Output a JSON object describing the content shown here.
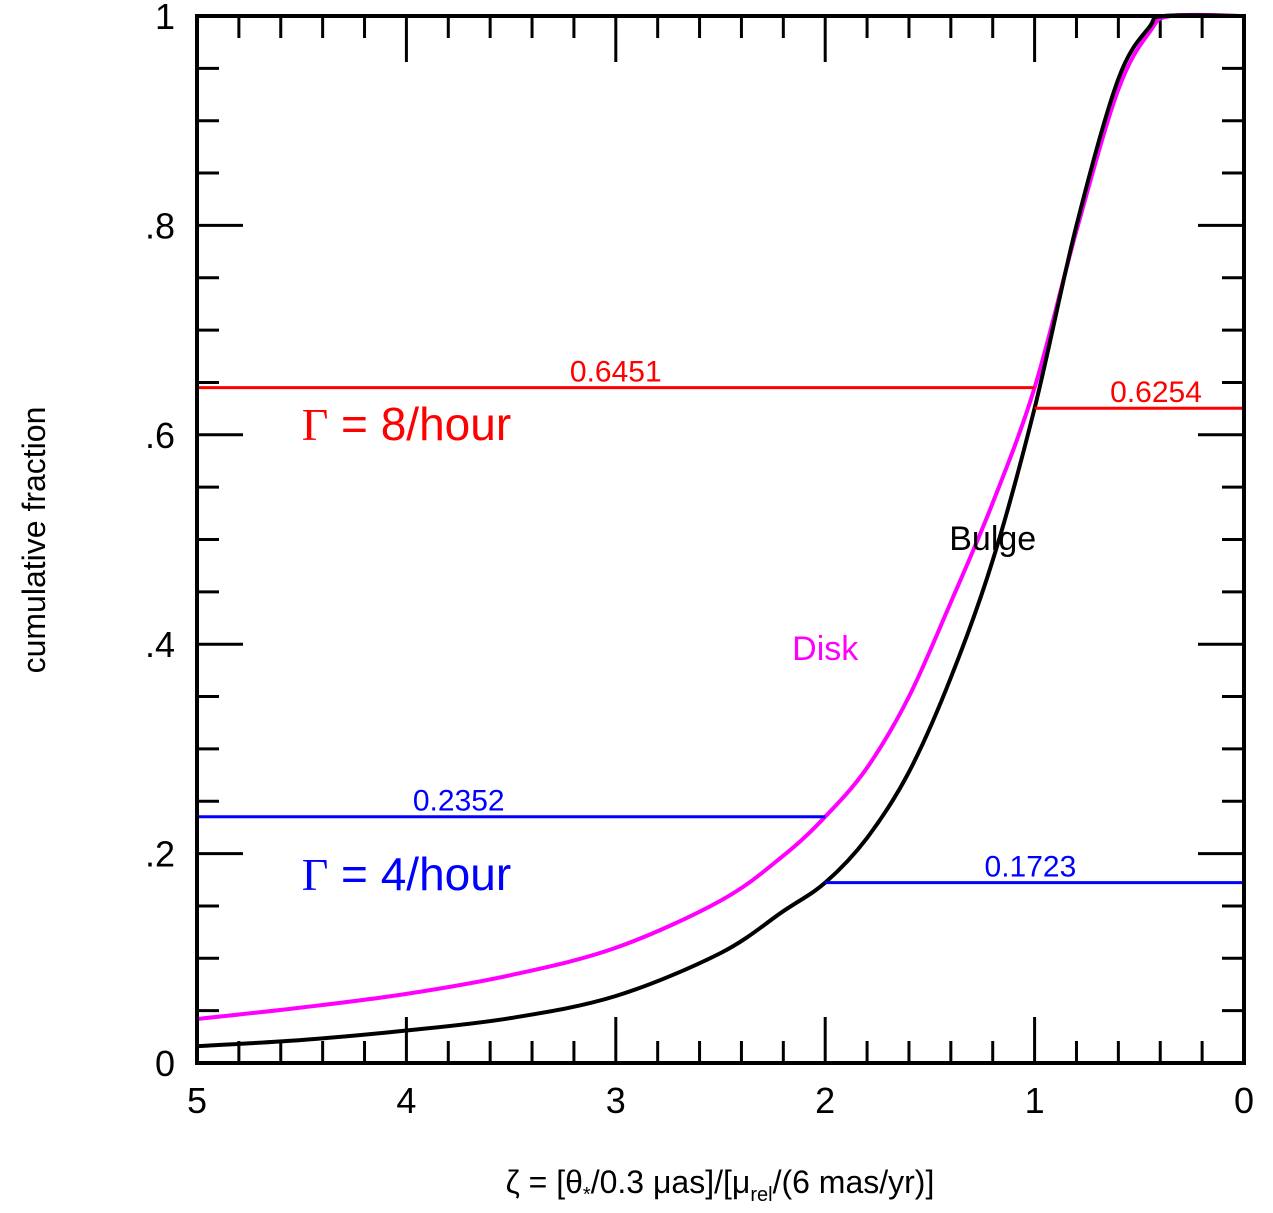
{
  "chart_data": {
    "type": "line",
    "xlabel": {
      "prefix": "ζ = [θ",
      "sub1": "*",
      "mid": "/0.3 μas]/[μ",
      "sub2": "rel",
      "suffix": "/(6 mas/yr)]"
    },
    "ylabel": "cumulative fraction",
    "xlim": [
      5,
      0
    ],
    "ylim": [
      0,
      1
    ],
    "x_ticks": [
      5,
      4,
      3,
      2,
      1,
      0
    ],
    "x_tick_labels": [
      "5",
      "4",
      "3",
      "2",
      "1",
      "0"
    ],
    "y_ticks": [
      0,
      0.2,
      0.4,
      0.6,
      0.8,
      1
    ],
    "y_tick_labels": [
      "0",
      ".2",
      ".4",
      ".6",
      ".8",
      "1"
    ],
    "series": [
      {
        "name": "Disk",
        "color": "#ff00ff",
        "x": [
          5.0,
          4.5,
          4.0,
          3.5,
          3.0,
          2.5,
          2.2,
          2.0,
          1.8,
          1.6,
          1.4,
          1.2,
          1.0,
          0.8,
          0.6,
          0.45,
          0.35,
          0.0
        ],
        "y": [
          0.042,
          0.053,
          0.066,
          0.084,
          0.11,
          0.155,
          0.198,
          0.2352,
          0.282,
          0.35,
          0.44,
          0.535,
          0.6451,
          0.795,
          0.93,
          0.985,
          1.0,
          1.0
        ]
      },
      {
        "name": "Bulge",
        "color": "#000000",
        "x": [
          5.0,
          4.5,
          4.0,
          3.5,
          3.0,
          2.5,
          2.2,
          2.0,
          1.8,
          1.6,
          1.4,
          1.2,
          1.0,
          0.8,
          0.6,
          0.45,
          0.38,
          0.0
        ],
        "y": [
          0.016,
          0.022,
          0.031,
          0.043,
          0.064,
          0.105,
          0.145,
          0.1723,
          0.215,
          0.278,
          0.368,
          0.48,
          0.6254,
          0.8,
          0.94,
          0.99,
          1.0,
          1.0
        ]
      }
    ],
    "hlines": [
      {
        "y": 0.6451,
        "x_from": 5,
        "x_to": 1.0,
        "color": "#ff0000",
        "label": "0.6451",
        "label_x": 3.0
      },
      {
        "y": 0.6254,
        "x_from": 1.0,
        "x_to": 0,
        "color": "#ff0000",
        "label": "0.6254",
        "label_x": 0.42
      },
      {
        "y": 0.2352,
        "x_from": 5,
        "x_to": 2.0,
        "color": "#0000ff",
        "label": "0.2352",
        "label_x": 3.75
      },
      {
        "y": 0.1723,
        "x_from": 2.0,
        "x_to": 0,
        "color": "#0000ff",
        "label": "0.1723",
        "label_x": 1.02
      }
    ],
    "annotations": [
      {
        "symbol": "Γ",
        "text": " = 8/hour",
        "x": 4.5,
        "y": 0.595,
        "color": "#ff0000"
      },
      {
        "symbol": "Γ",
        "text": " = 4/hour",
        "x": 4.5,
        "y": 0.165,
        "color": "#0000ff"
      },
      {
        "text": "Disk",
        "x": 2.0,
        "y": 0.385,
        "color": "#ff00ff"
      },
      {
        "text": "Bulge",
        "x": 1.2,
        "y": 0.49,
        "color": "#000000"
      }
    ],
    "grid": false
  }
}
